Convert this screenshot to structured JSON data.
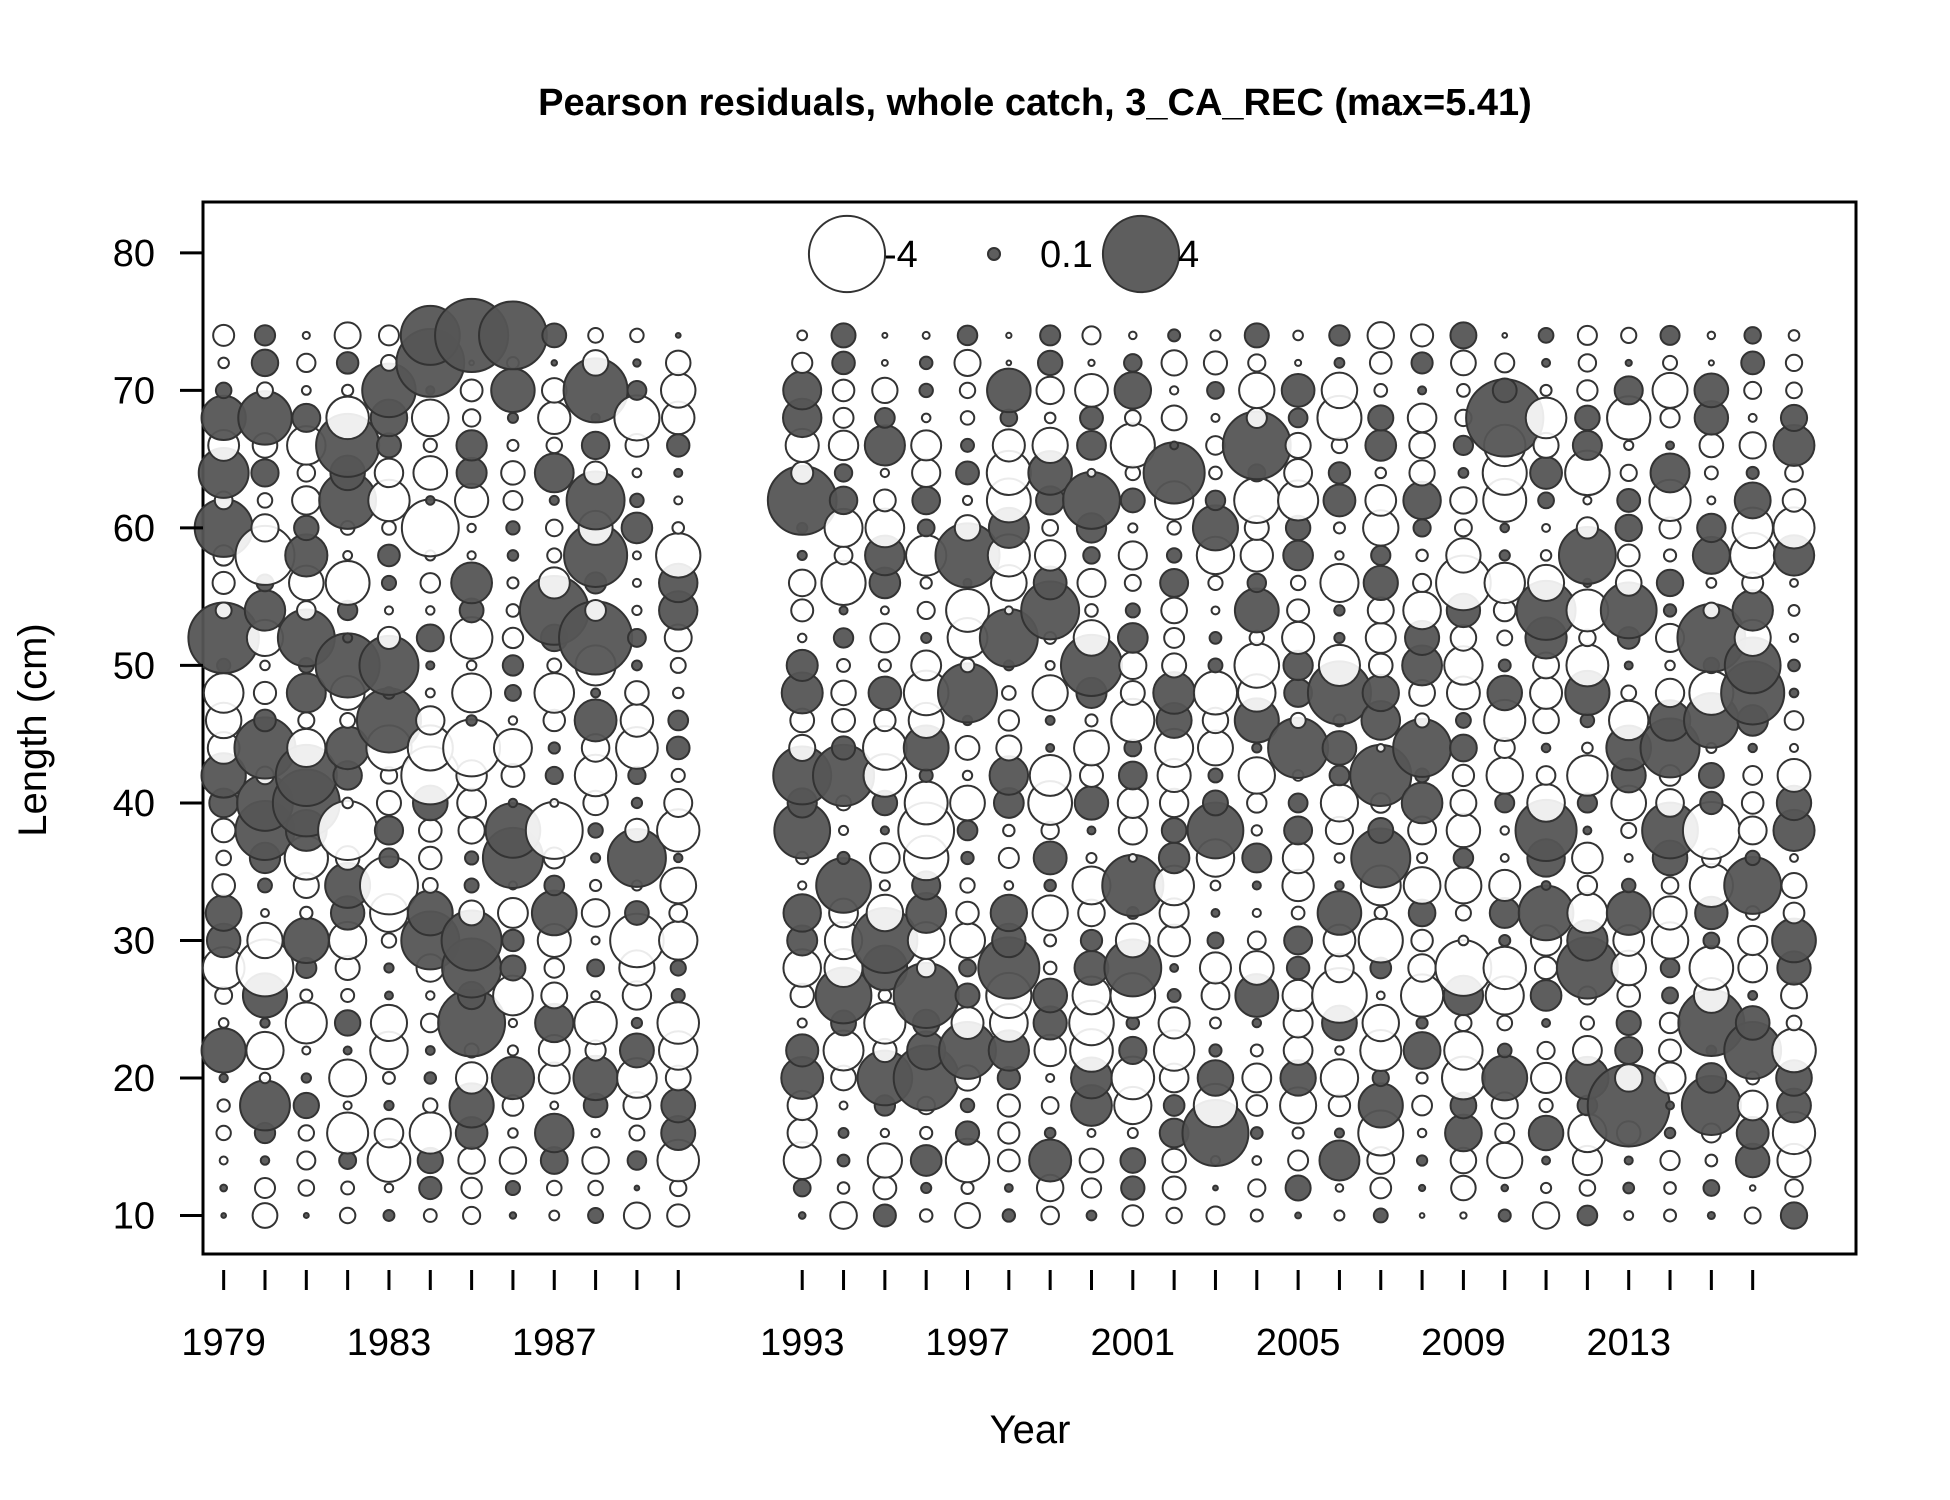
{
  "chart_data": {
    "type": "scatter",
    "title": "Pearson residuals, whole catch, 3_CA_REC (max=5.41)",
    "xlabel": "Year",
    "ylabel": "Length (cm)",
    "xlim": [
      1978.5,
      2018.5
    ],
    "ylim": [
      7.2,
      83.7
    ],
    "x_ticks": [
      1979,
      1980,
      1981,
      1982,
      1983,
      1984,
      1985,
      1986,
      1987,
      1988,
      1989,
      1990,
      1993,
      1994,
      1995,
      1996,
      1997,
      1998,
      1999,
      2000,
      2001,
      2002,
      2003,
      2004,
      2005,
      2006,
      2007,
      2008,
      2009,
      2010,
      2011,
      2012,
      2013,
      2014,
      2015,
      2016
    ],
    "x_tick_labels": [
      {
        "value": 1979,
        "text": "1979"
      },
      {
        "value": 1983,
        "text": "1983"
      },
      {
        "value": 1987,
        "text": "1987"
      },
      {
        "value": 1993,
        "text": "1993"
      },
      {
        "value": 1997,
        "text": "1997"
      },
      {
        "value": 2001,
        "text": "2001"
      },
      {
        "value": 2005,
        "text": "2005"
      },
      {
        "value": 2009,
        "text": "2009"
      },
      {
        "value": 2013,
        "text": "2013"
      }
    ],
    "y_ticks": [
      {
        "value": 10,
        "text": "10"
      },
      {
        "value": 20,
        "text": "20"
      },
      {
        "value": 30,
        "text": "30"
      },
      {
        "value": 40,
        "text": "40"
      },
      {
        "value": 50,
        "text": "50"
      },
      {
        "value": 60,
        "text": "60"
      },
      {
        "value": 70,
        "text": "70"
      },
      {
        "value": 80,
        "text": "80"
      }
    ],
    "legend": {
      "position": "top-center",
      "entries": [
        {
          "label": "-4",
          "value": -4
        },
        {
          "label": "0.1",
          "value": 0.1
        },
        {
          "label": "4",
          "value": 4
        }
      ]
    },
    "grid": false,
    "colors": {
      "positive": "#555555",
      "negative": "#ffffff",
      "outline": "#333333"
    },
    "max_residual": 5.41,
    "years": [
      1979,
      1980,
      1981,
      1982,
      1983,
      1984,
      1985,
      1986,
      1987,
      1988,
      1989,
      1990,
      1993,
      1994,
      1995,
      1996,
      1997,
      1998,
      1999,
      2000,
      2001,
      2002,
      2003,
      2004,
      2005,
      2006,
      2007,
      2008,
      2009,
      2010,
      2011,
      2012,
      2013,
      2014,
      2015,
      2016,
      2017
    ],
    "length_bins": [
      10,
      12,
      14,
      16,
      18,
      20,
      22,
      24,
      26,
      28,
      30,
      32,
      34,
      36,
      38,
      40,
      42,
      44,
      46,
      48,
      50,
      52,
      54,
      56,
      58,
      60,
      62,
      64,
      66,
      68,
      70,
      72,
      74
    ],
    "highlighted_residuals": [
      {
        "year": 1979,
        "length": 52,
        "value": 4.0
      },
      {
        "year": 1979,
        "length": 60,
        "value": 2.7
      },
      {
        "year": 1979,
        "length": 64,
        "value": 2.0
      },
      {
        "year": 1980,
        "length": 58,
        "value": -2.8
      },
      {
        "year": 1980,
        "length": 68,
        "value": 2.3
      },
      {
        "year": 1980,
        "length": 44,
        "value": 3.0
      },
      {
        "year": 1980,
        "length": 40,
        "value": 2.5
      },
      {
        "year": 1980,
        "length": 38,
        "value": 2.8
      },
      {
        "year": 1980,
        "length": 28,
        "value": -2.6
      },
      {
        "year": 1980,
        "length": 18,
        "value": 2.0
      },
      {
        "year": 1981,
        "length": 52,
        "value": 2.6
      },
      {
        "year": 1981,
        "length": 42,
        "value": 3.0
      },
      {
        "year": 1981,
        "length": 40,
        "value": 3.6
      },
      {
        "year": 1982,
        "length": 66,
        "value": 3.2
      },
      {
        "year": 1982,
        "length": 62,
        "value": 2.6
      },
      {
        "year": 1982,
        "length": 50,
        "value": 3.3
      },
      {
        "year": 1982,
        "length": 38,
        "value": -2.8
      },
      {
        "year": 1983,
        "length": 70,
        "value": 2.3
      },
      {
        "year": 1983,
        "length": 46,
        "value": 3.3
      },
      {
        "year": 1983,
        "length": 50,
        "value": 2.8
      },
      {
        "year": 1983,
        "length": 34,
        "value": -2.7
      },
      {
        "year": 1984,
        "length": 74,
        "value": 2.8
      },
      {
        "year": 1984,
        "length": 72,
        "value": 3.7
      },
      {
        "year": 1984,
        "length": 60,
        "value": -2.6
      },
      {
        "year": 1984,
        "length": 42,
        "value": -2.7
      },
      {
        "year": 1984,
        "length": 30,
        "value": 2.7
      },
      {
        "year": 1985,
        "length": 74,
        "value": 4.3
      },
      {
        "year": 1985,
        "length": 30,
        "value": 2.9
      },
      {
        "year": 1985,
        "length": 28,
        "value": 2.8
      },
      {
        "year": 1985,
        "length": 24,
        "value": 3.6
      },
      {
        "year": 1985,
        "length": 44,
        "value": -2.6
      },
      {
        "year": 1986,
        "length": 74,
        "value": 3.7
      },
      {
        "year": 1986,
        "length": 36,
        "value": 2.9
      },
      {
        "year": 1986,
        "length": 38,
        "value": 2.4
      },
      {
        "year": 1987,
        "length": 54,
        "value": 3.8
      },
      {
        "year": 1987,
        "length": 38,
        "value": -2.6
      },
      {
        "year": 1988,
        "length": 52,
        "value": 4.3
      },
      {
        "year": 1988,
        "length": 70,
        "value": 3.3
      },
      {
        "year": 1988,
        "length": 58,
        "value": 3.2
      },
      {
        "year": 1988,
        "length": 62,
        "value": 2.7
      },
      {
        "year": 1989,
        "length": 36,
        "value": 2.7
      },
      {
        "year": 1989,
        "length": 30,
        "value": -2.3
      },
      {
        "year": 1993,
        "length": 62,
        "value": 3.8
      },
      {
        "year": 1993,
        "length": 42,
        "value": 2.7
      },
      {
        "year": 1993,
        "length": 38,
        "value": 2.5
      },
      {
        "year": 1994,
        "length": 42,
        "value": 3.0
      },
      {
        "year": 1994,
        "length": 34,
        "value": 2.4
      },
      {
        "year": 1994,
        "length": 26,
        "value": 2.5
      },
      {
        "year": 1995,
        "length": 30,
        "value": 3.4
      },
      {
        "year": 1995,
        "length": 20,
        "value": 2.4
      },
      {
        "year": 1996,
        "length": 26,
        "value": 3.4
      },
      {
        "year": 1996,
        "length": 20,
        "value": 3.4
      },
      {
        "year": 1996,
        "length": 38,
        "value": -2.5
      },
      {
        "year": 1997,
        "length": 58,
        "value": 3.3
      },
      {
        "year": 1997,
        "length": 48,
        "value": 2.8
      },
      {
        "year": 1997,
        "length": 22,
        "value": 2.6
      },
      {
        "year": 1998,
        "length": 28,
        "value": 3.0
      },
      {
        "year": 1998,
        "length": 52,
        "value": 2.7
      },
      {
        "year": 1999,
        "length": 54,
        "value": 2.7
      },
      {
        "year": 2000,
        "length": 50,
        "value": 3.0
      },
      {
        "year": 2000,
        "length": 62,
        "value": 2.6
      },
      {
        "year": 2001,
        "length": 34,
        "value": 3.0
      },
      {
        "year": 2001,
        "length": 28,
        "value": 2.6
      },
      {
        "year": 2002,
        "length": 64,
        "value": 3.0
      },
      {
        "year": 2003,
        "length": 16,
        "value": 3.5
      },
      {
        "year": 2003,
        "length": 38,
        "value": 2.5
      },
      {
        "year": 2004,
        "length": 66,
        "value": 3.7
      },
      {
        "year": 2005,
        "length": 44,
        "value": 2.9
      },
      {
        "year": 2006,
        "length": 48,
        "value": 3.2
      },
      {
        "year": 2006,
        "length": 26,
        "value": -2.4
      },
      {
        "year": 2007,
        "length": 42,
        "value": 3.0
      },
      {
        "year": 2007,
        "length": 36,
        "value": 2.8
      },
      {
        "year": 2008,
        "length": 44,
        "value": 2.7
      },
      {
        "year": 2009,
        "length": 56,
        "value": -2.4
      },
      {
        "year": 2009,
        "length": 28,
        "value": -2.5
      },
      {
        "year": 2010,
        "length": 68,
        "value": 4.8
      },
      {
        "year": 2011,
        "length": 54,
        "value": 2.8
      },
      {
        "year": 2011,
        "length": 38,
        "value": 3.0
      },
      {
        "year": 2011,
        "length": 32,
        "value": 2.4
      },
      {
        "year": 2012,
        "length": 58,
        "value": 2.6
      },
      {
        "year": 2012,
        "length": 28,
        "value": 3.0
      },
      {
        "year": 2013,
        "length": 18,
        "value": 5.41
      },
      {
        "year": 2013,
        "length": 54,
        "value": 2.5
      },
      {
        "year": 2014,
        "length": 44,
        "value": 2.8
      },
      {
        "year": 2014,
        "length": 38,
        "value": 2.5
      },
      {
        "year": 2015,
        "length": 52,
        "value": 3.7
      },
      {
        "year": 2015,
        "length": 24,
        "value": 3.5
      },
      {
        "year": 2015,
        "length": 18,
        "value": 2.8
      },
      {
        "year": 2015,
        "length": 46,
        "value": 2.4
      },
      {
        "year": 2015,
        "length": 38,
        "value": -2.6
      },
      {
        "year": 2016,
        "length": 48,
        "value": 3.2
      },
      {
        "year": 2016,
        "length": 22,
        "value": 2.6
      },
      {
        "year": 2016,
        "length": 34,
        "value": 2.6
      },
      {
        "year": 2016,
        "length": 50,
        "value": 2.5
      }
    ]
  }
}
